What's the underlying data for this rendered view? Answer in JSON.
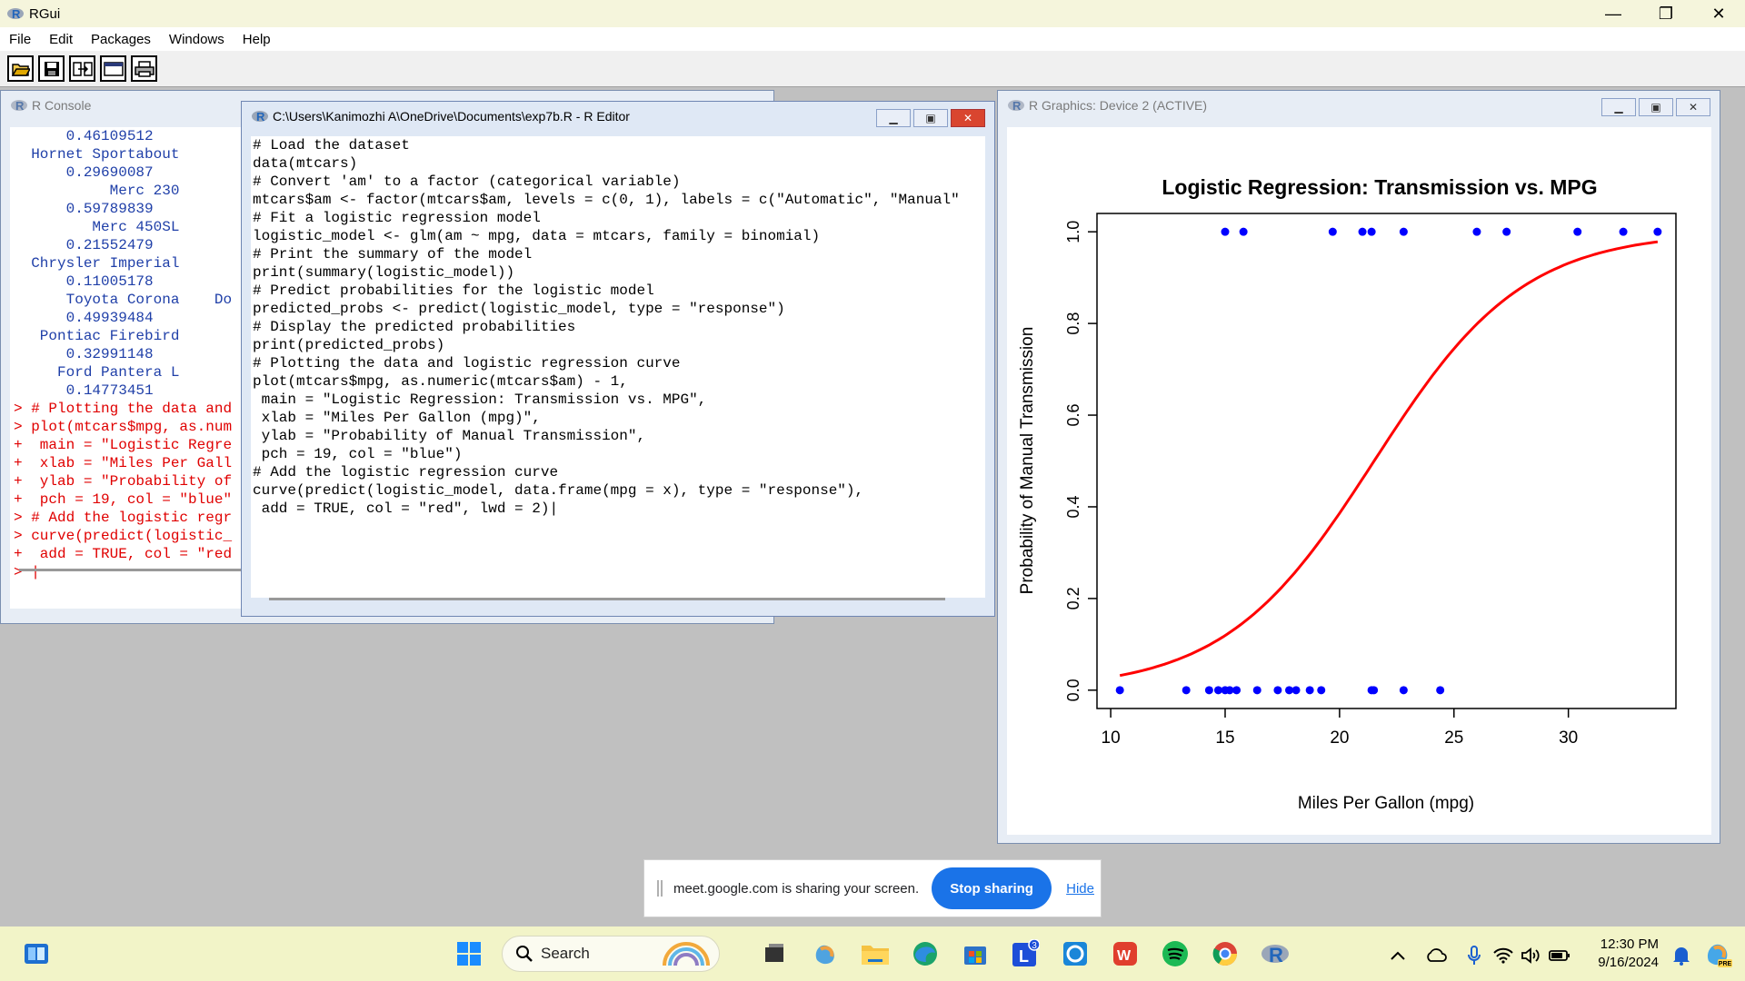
{
  "app": {
    "title": "RGui",
    "window_controls": [
      "—",
      "❐",
      "✕"
    ]
  },
  "menu": [
    "File",
    "Edit",
    "Packages",
    "Windows",
    "Help"
  ],
  "toolbar": [
    "open-script",
    "save-workspace",
    "load-workspace",
    "copy-paste",
    "print"
  ],
  "console": {
    "title": "R Console",
    "lines": [
      {
        "text": "      0.46109512",
        "color": "blue"
      },
      {
        "text": "  Hornet Sportabout",
        "color": "blue"
      },
      {
        "text": "      0.29690087",
        "color": "blue"
      },
      {
        "text": "           Merc 230",
        "color": "blue"
      },
      {
        "text": "      0.59789839",
        "color": "blue"
      },
      {
        "text": "         Merc 450SL",
        "color": "blue"
      },
      {
        "text": "      0.21552479",
        "color": "blue"
      },
      {
        "text": "  Chrysler Imperial",
        "color": "blue"
      },
      {
        "text": "      0.11005178",
        "color": "blue"
      },
      {
        "text": "      Toyota Corona    Do",
        "color": "blue"
      },
      {
        "text": "      0.49939484",
        "color": "blue"
      },
      {
        "text": "   Pontiac Firebird",
        "color": "blue"
      },
      {
        "text": "      0.32991148",
        "color": "blue"
      },
      {
        "text": "     Ford Pantera L",
        "color": "blue"
      },
      {
        "text": "      0.14773451",
        "color": "blue"
      },
      {
        "text": "> # Plotting the data and",
        "color": "red"
      },
      {
        "text": "> plot(mtcars$mpg, as.num",
        "color": "red"
      },
      {
        "text": "+  main = \"Logistic Regre",
        "color": "red"
      },
      {
        "text": "+  xlab = \"Miles Per Gall",
        "color": "red"
      },
      {
        "text": "+  ylab = \"Probability of",
        "color": "red"
      },
      {
        "text": "+  pch = 19, col = \"blue\"",
        "color": "red"
      },
      {
        "text": "> # Add the logistic regr",
        "color": "red"
      },
      {
        "text": "> curve(predict(logistic_",
        "color": "red"
      },
      {
        "text": "+  add = TRUE, col = \"red",
        "color": "red"
      },
      {
        "text": "> |",
        "color": "red"
      }
    ]
  },
  "editor": {
    "title": "C:\\Users\\Kanimozhi A\\OneDrive\\Documents\\exp7b.R - R Editor",
    "lines": [
      "# Load the dataset",
      "data(mtcars)",
      "# Convert 'am' to a factor (categorical variable)",
      "mtcars$am <- factor(mtcars$am, levels = c(0, 1), labels = c(\"Automatic\", \"Manual\"",
      "# Fit a logistic regression model",
      "logistic_model <- glm(am ~ mpg, data = mtcars, family = binomial)",
      "# Print the summary of the model",
      "print(summary(logistic_model))",
      "# Predict probabilities for the logistic model",
      "predicted_probs <- predict(logistic_model, type = \"response\")",
      "# Display the predicted probabilities",
      "print(predicted_probs)",
      "# Plotting the data and logistic regression curve",
      "plot(mtcars$mpg, as.numeric(mtcars$am) - 1,",
      " main = \"Logistic Regression: Transmission vs. MPG\",",
      " xlab = \"Miles Per Gallon (mpg)\",",
      " ylab = \"Probability of Manual Transmission\",",
      " pch = 19, col = \"blue\")",
      "# Add the logistic regression curve",
      "curve(predict(logistic_model, data.frame(mpg = x), type = \"response\"),",
      " add = TRUE, col = \"red\", lwd = 2)|"
    ]
  },
  "graphics": {
    "title": "R Graphics: Device 2 (ACTIVE)"
  },
  "chart_data": {
    "type": "scatter",
    "title": "Logistic Regression: Transmission vs. MPG",
    "xlabel": "Miles Per Gallon (mpg)",
    "ylabel": "Probability of Manual Transmission",
    "xlim": [
      9.4,
      34.7
    ],
    "ylim": [
      -0.04,
      1.04
    ],
    "xticks": [
      "10",
      "15",
      "20",
      "25",
      "30"
    ],
    "yticks": [
      "0.0",
      "0.2",
      "0.4",
      "0.6",
      "0.8",
      "1.0"
    ],
    "series": [
      {
        "points": [
          [
            10.4,
            0
          ],
          [
            13.3,
            0
          ],
          [
            14.3,
            0
          ],
          [
            14.7,
            0
          ],
          [
            15.0,
            0
          ],
          [
            15.2,
            0
          ],
          [
            15.5,
            0
          ],
          [
            16.4,
            0
          ],
          [
            17.3,
            0
          ],
          [
            17.8,
            0
          ],
          [
            18.1,
            0
          ],
          [
            18.7,
            0
          ],
          [
            19.2,
            0
          ],
          [
            21.4,
            0
          ],
          [
            21.5,
            0
          ],
          [
            22.8,
            0
          ],
          [
            24.4,
            0
          ],
          [
            15.0,
            1
          ],
          [
            15.8,
            1
          ],
          [
            19.7,
            1
          ],
          [
            21.0,
            1
          ],
          [
            21.4,
            1
          ],
          [
            22.8,
            1
          ],
          [
            26.0,
            1
          ],
          [
            27.3,
            1
          ],
          [
            30.4,
            1
          ],
          [
            32.4,
            1
          ],
          [
            33.9,
            1
          ]
        ],
        "color": "#0000ff"
      },
      {
        "curve": "logistic",
        "intercept": -6.604,
        "slope": 0.307,
        "color": "#ff0000"
      }
    ]
  },
  "share_banner": {
    "message": "meet.google.com is sharing your screen.",
    "stop_label": "Stop sharing",
    "hide_label": "Hide"
  },
  "taskbar": {
    "search_label": "Search",
    "time": "12:30 PM",
    "date": "9/16/2024",
    "icons": [
      "windows-start-icon",
      "task-view-icon",
      "copilot-icon",
      "file-explorer-icon",
      "edge-icon",
      "store-icon",
      "l-app-icon",
      "circle-app-icon",
      "office-icon",
      "spotify-icon",
      "chrome-icon",
      "r-gui-icon"
    ],
    "badge": "3"
  }
}
